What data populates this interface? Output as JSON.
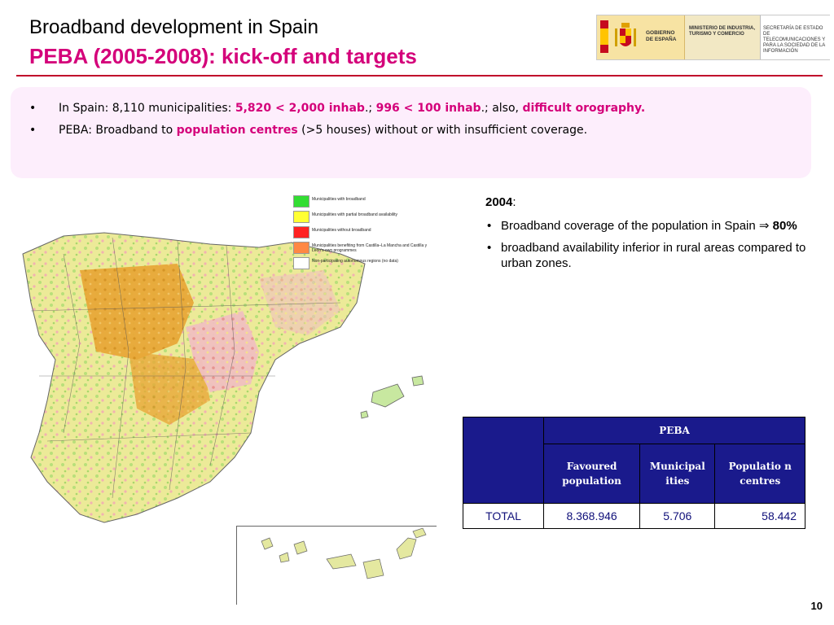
{
  "header": {
    "title_line1": "Broadband development in Spain",
    "title_line2": "PEBA (2005-2008): kick-off and targets"
  },
  "logo": {
    "gov": "GOBIERNO DE ESPAÑA",
    "ministry": "MINISTERIO DE INDUSTRIA, TURISMO Y COMERCIO",
    "secretariat": "SECRETARÍA DE ESTADO DE TELECOMUNICACIONES Y PARA LA SOCIEDAD DE LA INFORMACIÓN"
  },
  "intro": {
    "b1_pre": "In Spain: 8,110 municipalities: ",
    "b1_hl1": "5,820 < 2,000 inhab",
    "b1_mid1": ".; ",
    "b1_hl2": "996 < 100 inhab",
    "b1_mid2": ".; also, ",
    "b1_hl3": "difficult orography.",
    "b2_pre": "PEBA: Broadband to ",
    "b2_hl": "population centres",
    "b2_post": " (>5 houses) without or with insufficient coverage."
  },
  "legend": [
    {
      "label": "Municipalities with broadband",
      "color": "#33dd33"
    },
    {
      "label": "Municipalities with partial broadband availability",
      "color": "#ffff33"
    },
    {
      "label": "Municipalities without broadband",
      "color": "#ff2222"
    },
    {
      "label": "Municipalities benefiting from Castilla–La Mancha and Castilla y León's own programmes",
      "color": "#ff8844"
    },
    {
      "label": "Non-participating autonomous regions (no data)",
      "color": "#ffffff"
    }
  ],
  "right": {
    "year": "2004",
    "year_colon": ":",
    "li1_pre": "Broadband coverage of the population in Spain ",
    "li1_arrow": "⇒",
    "li1_val": "80%",
    "li2": "broadband availability inferior in rural areas compared to urban zones."
  },
  "table": {
    "group_header": "PEBA",
    "col1": "Favoured population",
    "col2": "Municipal ities",
    "col3": "Populatio n centres",
    "row_label": "TOTAL",
    "v1": "8.368.946",
    "v2": "5.706",
    "v3": "58.442"
  },
  "page_number": "10"
}
